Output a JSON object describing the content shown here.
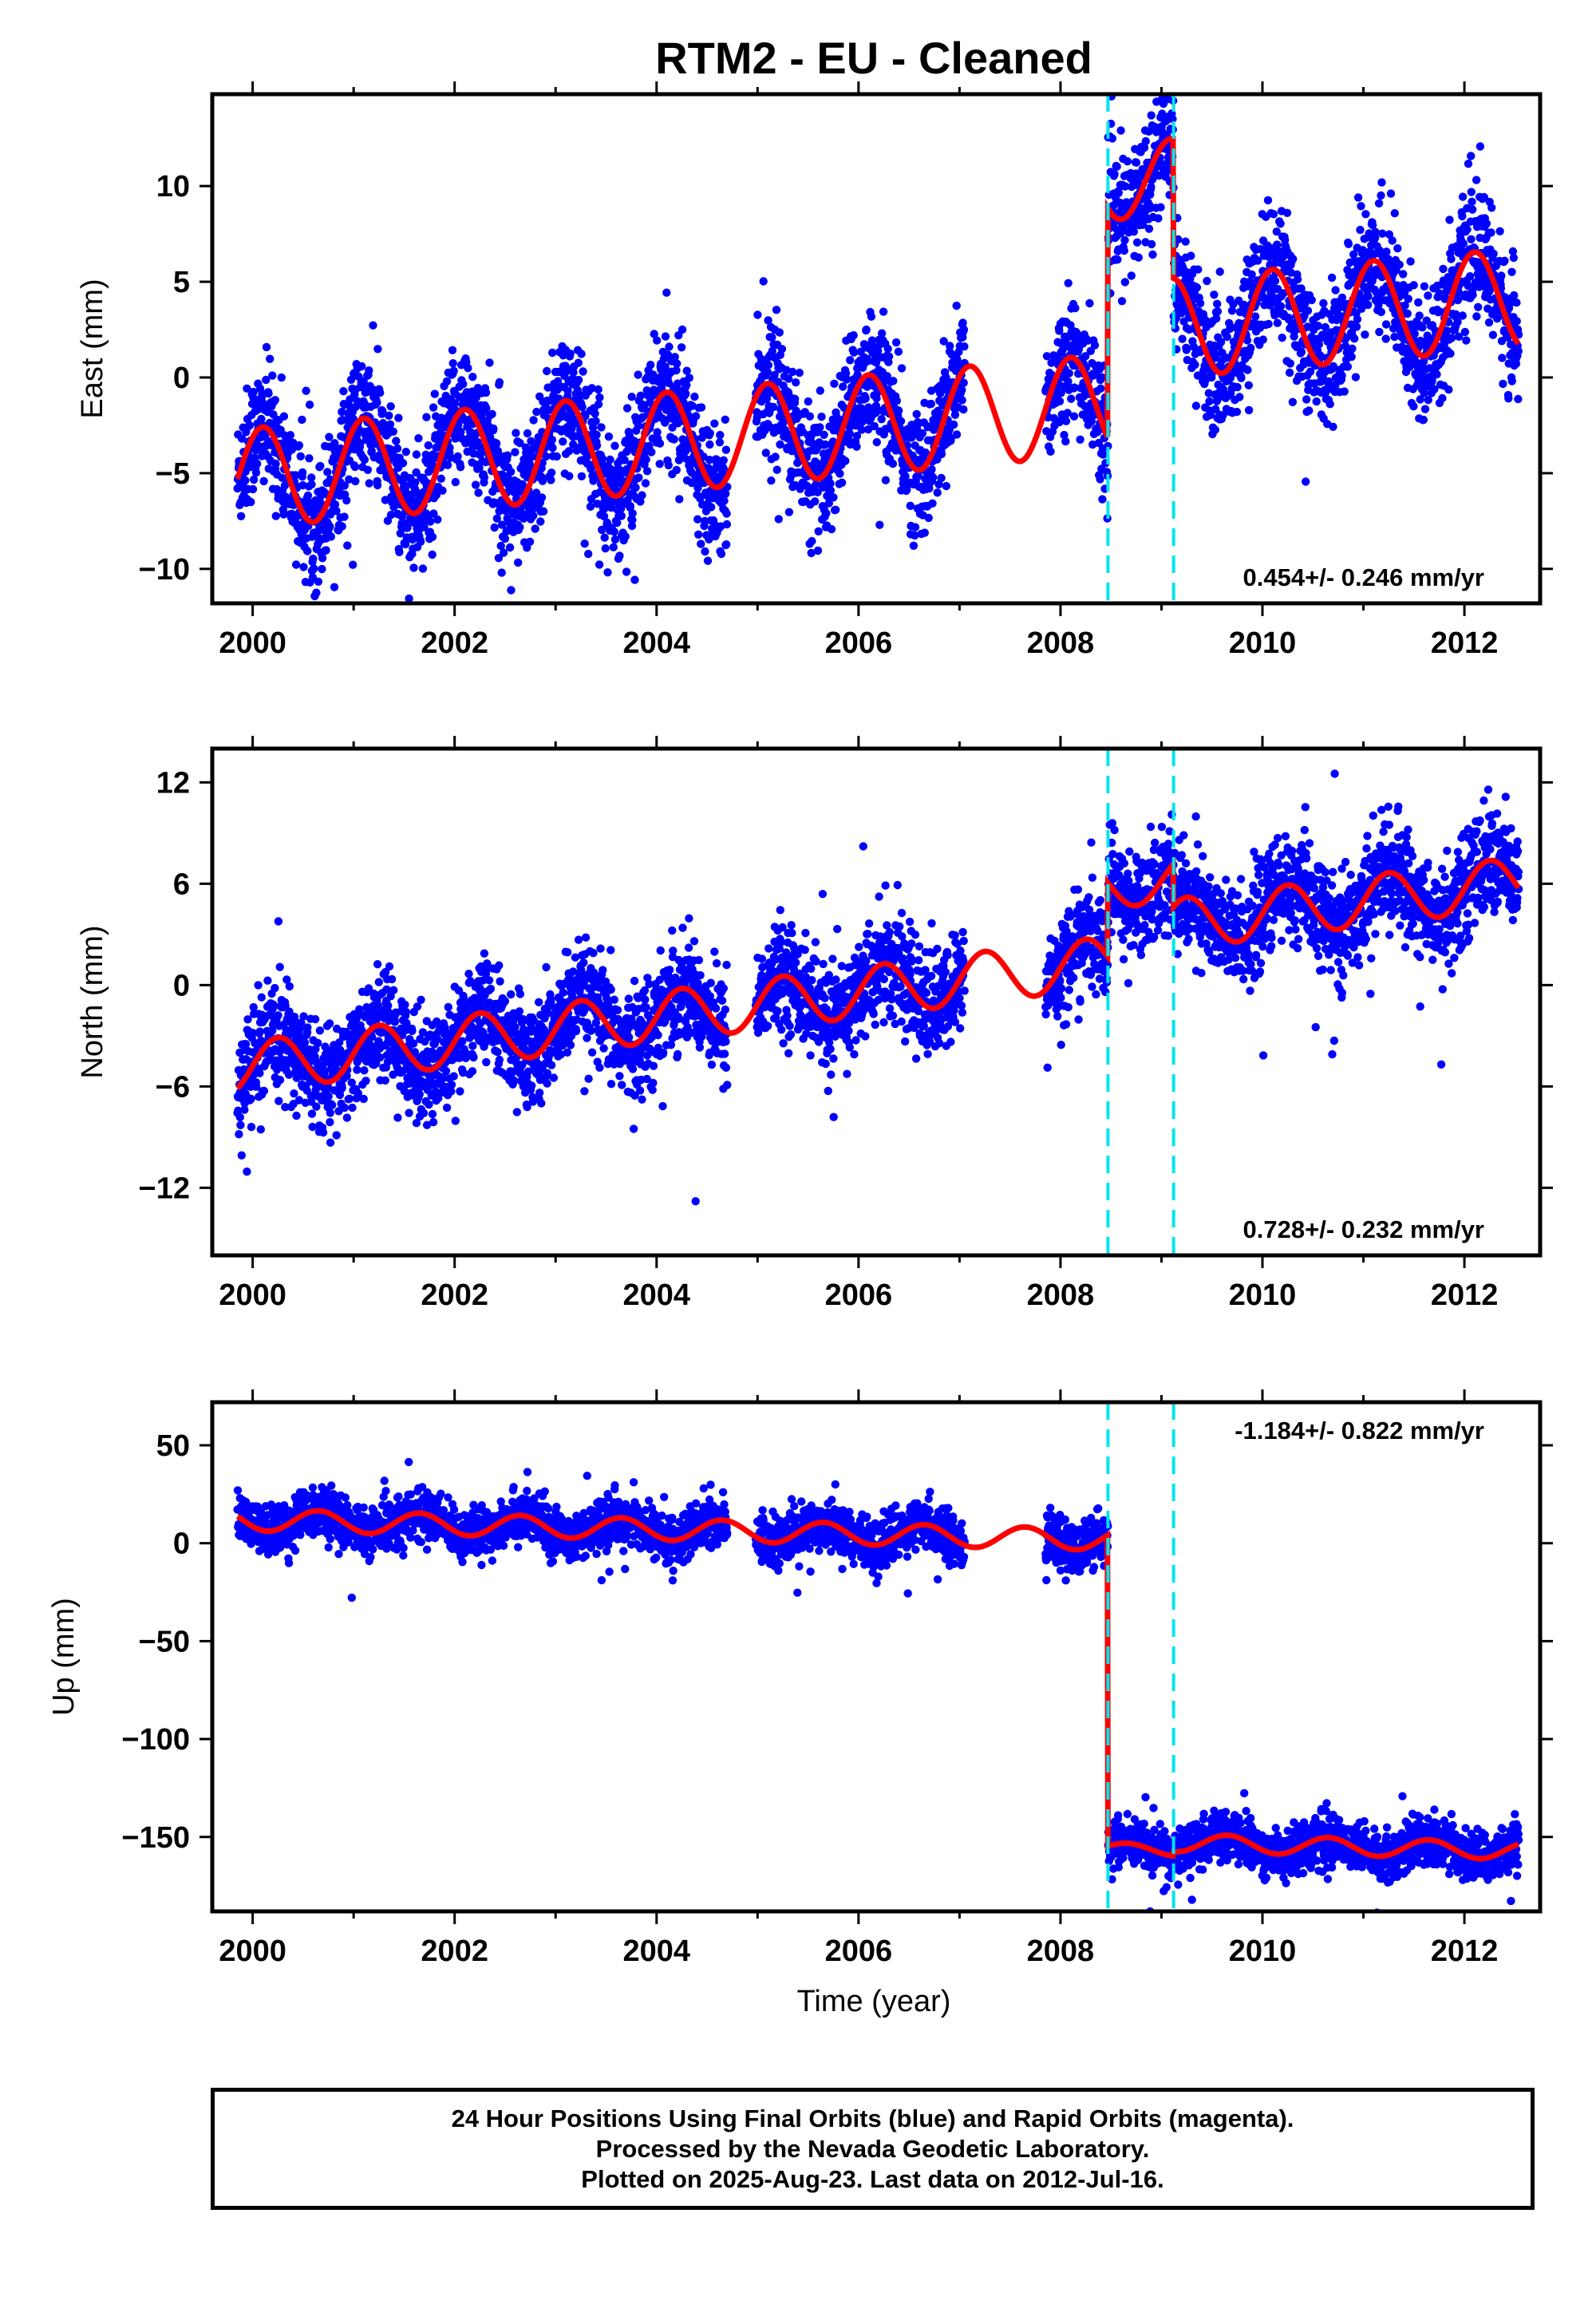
{
  "title": "RTM2  - EU - Cleaned",
  "xlabel": "Time (year)",
  "footer": [
    "24 Hour Positions Using Final Orbits (blue) and Rapid Orbits (magenta).",
    "Processed by the Nevada Geodetic Laboratory.",
    "Plotted on 2025-Aug-23. Last data on 2012-Jul-16."
  ],
  "colors": {
    "data": "#0000ff",
    "model": "#ff0000",
    "offset": "#00e5ee"
  },
  "chart_data": [
    {
      "type": "scatter",
      "ylabel": "East (mm)",
      "rate": "0.454+/- 0.246 mm/yr",
      "xlim": [
        1999.6,
        2012.75
      ],
      "ylim": [
        -11.8,
        14.8
      ],
      "yticks": [
        10,
        5,
        0,
        -5,
        -10
      ],
      "xticks": [
        2000,
        2002,
        2004,
        2006,
        2008,
        2010,
        2012
      ],
      "offsets": [
        2008.47,
        2009.12
      ],
      "model_segments": [
        {
          "range": [
            1999.85,
            2008.47
          ],
          "base": -5.3,
          "slope": 0.454,
          "amp": 2.6,
          "phase": 0.15
        },
        {
          "range": [
            2008.47,
            2009.12
          ],
          "base": 10.2,
          "slope": 0.454,
          "amp": 2.0,
          "phase": 0.15
        },
        {
          "range": [
            2009.12,
            2012.55
          ],
          "base": 2.6,
          "slope": 0.454,
          "amp": 2.6,
          "phase": 0.15
        }
      ],
      "noise": 1.6
    },
    {
      "type": "scatter",
      "ylabel": "North (mm)",
      "rate": "0.728+/- 0.232 mm/yr",
      "xlim": [
        1999.6,
        2012.75
      ],
      "ylim": [
        -16,
        14
      ],
      "yticks": [
        12,
        6,
        0,
        -6,
        -12
      ],
      "xticks": [
        2000,
        2002,
        2004,
        2006,
        2008,
        2010,
        2012
      ],
      "offsets": [
        2008.47,
        2009.12
      ],
      "model_segments": [
        {
          "range": [
            1999.85,
            2008.47
          ],
          "base": -4.9,
          "slope": 0.728,
          "amp": 1.5,
          "phase": 0.0
        },
        {
          "range": [
            2008.47,
            2009.12
          ],
          "base": 5.8,
          "slope": 0.728,
          "amp": 1.3,
          "phase": 0.0
        },
        {
          "range": [
            2009.12,
            2012.55
          ],
          "base": 3.6,
          "slope": 0.728,
          "amp": 1.5,
          "phase": 0.0
        }
      ],
      "noise": 1.5
    },
    {
      "type": "scatter",
      "ylabel": "Up (mm)",
      "rate": "-1.184+/- 0.822 mm/yr",
      "xlim": [
        1999.6,
        2012.75
      ],
      "ylim": [
        -188,
        72
      ],
      "yticks": [
        50,
        0,
        -50,
        -100,
        -150
      ],
      "xticks": [
        2000,
        2002,
        2004,
        2006,
        2008,
        2010,
        2012
      ],
      "offsets": [
        2008.47,
        2009.12
      ],
      "model_segments": [
        {
          "range": [
            1999.85,
            2008.47
          ],
          "base": 12.0,
          "slope": -1.184,
          "amp": 5.5,
          "phase": 0.6
        },
        {
          "range": [
            2008.47,
            2009.12
          ],
          "base": -156.0,
          "slope": -1.184,
          "amp": 3.0,
          "phase": 0.6
        },
        {
          "range": [
            2009.12,
            2012.55
          ],
          "base": -153.0,
          "slope": -1.184,
          "amp": 4.5,
          "phase": 0.6
        }
      ],
      "noise": 6.0
    }
  ]
}
